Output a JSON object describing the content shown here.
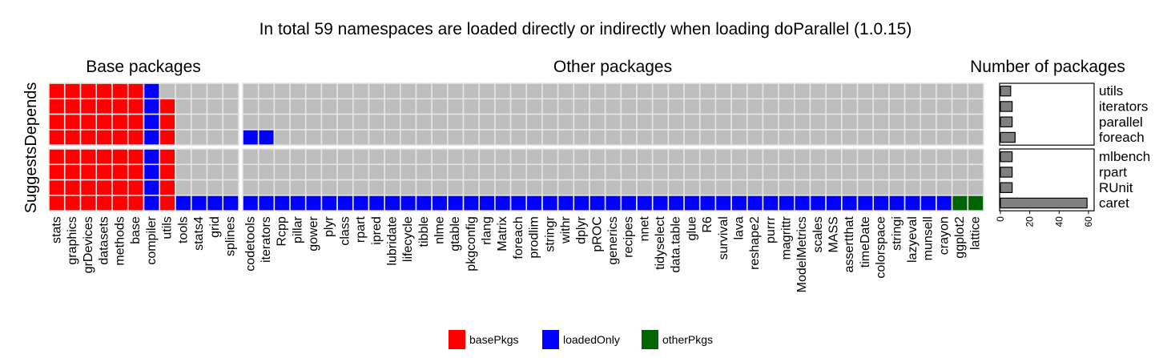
{
  "chart_data": {
    "type": "heatmap",
    "title": "In total 59 namespaces are loaded directly or indirectly when loading doParallel (1.0.15)",
    "colors": {
      "basePkgs": "#ff0000",
      "loadedOnly": "#0000ff",
      "otherPkgs": "#006400",
      "none": "#bebebe",
      "bar": "#808080"
    },
    "legend": {
      "position": "bottom",
      "entries": [
        {
          "key": "basePkgs",
          "label": "basePkgs"
        },
        {
          "key": "loadedOnly",
          "label": "loadedOnly"
        },
        {
          "key": "otherPkgs",
          "label": "otherPkgs"
        }
      ]
    },
    "groups": [
      {
        "name": "Depends",
        "rows": [
          "utils",
          "iterators",
          "parallel",
          "foreach"
        ]
      },
      {
        "name": "Suggests",
        "rows": [
          "mlbench",
          "rpart",
          "RUnit",
          "caret"
        ]
      }
    ],
    "base_panel": {
      "title": "Base packages",
      "columns": [
        "stats",
        "graphics",
        "grDevices",
        "datasets",
        "methods",
        "base",
        "compiler",
        "utils",
        "tools",
        "stats4",
        "grid",
        "splines"
      ],
      "cells": {
        "utils": [
          "basePkgs",
          "basePkgs",
          "basePkgs",
          "basePkgs",
          "basePkgs",
          "basePkgs",
          "loadedOnly",
          "none",
          "none",
          "none",
          "none",
          "none"
        ],
        "iterators": [
          "basePkgs",
          "basePkgs",
          "basePkgs",
          "basePkgs",
          "basePkgs",
          "basePkgs",
          "loadedOnly",
          "basePkgs",
          "none",
          "none",
          "none",
          "none"
        ],
        "parallel": [
          "basePkgs",
          "basePkgs",
          "basePkgs",
          "basePkgs",
          "basePkgs",
          "basePkgs",
          "loadedOnly",
          "basePkgs",
          "none",
          "none",
          "none",
          "none"
        ],
        "foreach": [
          "basePkgs",
          "basePkgs",
          "basePkgs",
          "basePkgs",
          "basePkgs",
          "basePkgs",
          "loadedOnly",
          "basePkgs",
          "none",
          "none",
          "none",
          "none"
        ],
        "mlbench": [
          "basePkgs",
          "basePkgs",
          "basePkgs",
          "basePkgs",
          "basePkgs",
          "basePkgs",
          "loadedOnly",
          "basePkgs",
          "none",
          "none",
          "none",
          "none"
        ],
        "rpart": [
          "basePkgs",
          "basePkgs",
          "basePkgs",
          "basePkgs",
          "basePkgs",
          "basePkgs",
          "loadedOnly",
          "basePkgs",
          "none",
          "none",
          "none",
          "none"
        ],
        "RUnit": [
          "basePkgs",
          "basePkgs",
          "basePkgs",
          "basePkgs",
          "basePkgs",
          "basePkgs",
          "loadedOnly",
          "basePkgs",
          "none",
          "none",
          "none",
          "none"
        ],
        "caret": [
          "basePkgs",
          "basePkgs",
          "basePkgs",
          "basePkgs",
          "basePkgs",
          "basePkgs",
          "loadedOnly",
          "basePkgs",
          "loadedOnly",
          "loadedOnly",
          "loadedOnly",
          "loadedOnly"
        ]
      }
    },
    "other_panel": {
      "title": "Other packages",
      "columns": [
        "codetools",
        "iterators",
        "Rcpp",
        "pillar",
        "gower",
        "plyr",
        "class",
        "rpart",
        "ipred",
        "lubridate",
        "lifecycle",
        "tibble",
        "nlme",
        "gtable",
        "pkgconfig",
        "rlang",
        "Matrix",
        "foreach",
        "prodlim",
        "stringr",
        "withr",
        "dplyr",
        "pROC",
        "generics",
        "recipes",
        "nnet",
        "tidyselect",
        "data.table",
        "glue",
        "R6",
        "survival",
        "lava",
        "reshape2",
        "purrr",
        "magrittr",
        "ModelMetrics",
        "scales",
        "MASS",
        "assertthat",
        "timeDate",
        "colorspace",
        "stringi",
        "lazyeval",
        "munsell",
        "crayon",
        "ggplot2",
        "lattice"
      ],
      "cells": {
        "foreach": {
          "codetools": "loadedOnly",
          "iterators": "loadedOnly"
        },
        "caret": {
          "codetools": "loadedOnly",
          "iterators": "loadedOnly",
          "Rcpp": "loadedOnly",
          "pillar": "loadedOnly",
          "gower": "loadedOnly",
          "plyr": "loadedOnly",
          "class": "loadedOnly",
          "rpart": "loadedOnly",
          "ipred": "loadedOnly",
          "lubridate": "loadedOnly",
          "lifecycle": "loadedOnly",
          "tibble": "loadedOnly",
          "nlme": "loadedOnly",
          "gtable": "loadedOnly",
          "pkgconfig": "loadedOnly",
          "rlang": "loadedOnly",
          "Matrix": "loadedOnly",
          "foreach": "loadedOnly",
          "prodlim": "loadedOnly",
          "stringr": "loadedOnly",
          "withr": "loadedOnly",
          "dplyr": "loadedOnly",
          "pROC": "loadedOnly",
          "generics": "loadedOnly",
          "recipes": "loadedOnly",
          "nnet": "loadedOnly",
          "tidyselect": "loadedOnly",
          "data.table": "loadedOnly",
          "glue": "loadedOnly",
          "R6": "loadedOnly",
          "survival": "loadedOnly",
          "lava": "loadedOnly",
          "reshape2": "loadedOnly",
          "purrr": "loadedOnly",
          "magrittr": "loadedOnly",
          "ModelMetrics": "loadedOnly",
          "scales": "loadedOnly",
          "MASS": "loadedOnly",
          "assertthat": "loadedOnly",
          "timeDate": "loadedOnly",
          "colorspace": "loadedOnly",
          "stringi": "loadedOnly",
          "lazyeval": "loadedOnly",
          "munsell": "loadedOnly",
          "crayon": "loadedOnly",
          "ggplot2": "otherPkgs",
          "lattice": "otherPkgs"
        }
      }
    },
    "count_panel": {
      "title": "Number of packages",
      "type": "bar",
      "xlim": [
        0,
        60
      ],
      "xticks": [
        "0",
        "20",
        "40",
        "60"
      ],
      "values": {
        "utils": 7,
        "iterators": 8,
        "parallel": 8,
        "foreach": 10,
        "mlbench": 8,
        "rpart": 8,
        "RUnit": 8,
        "caret": 59
      }
    }
  }
}
